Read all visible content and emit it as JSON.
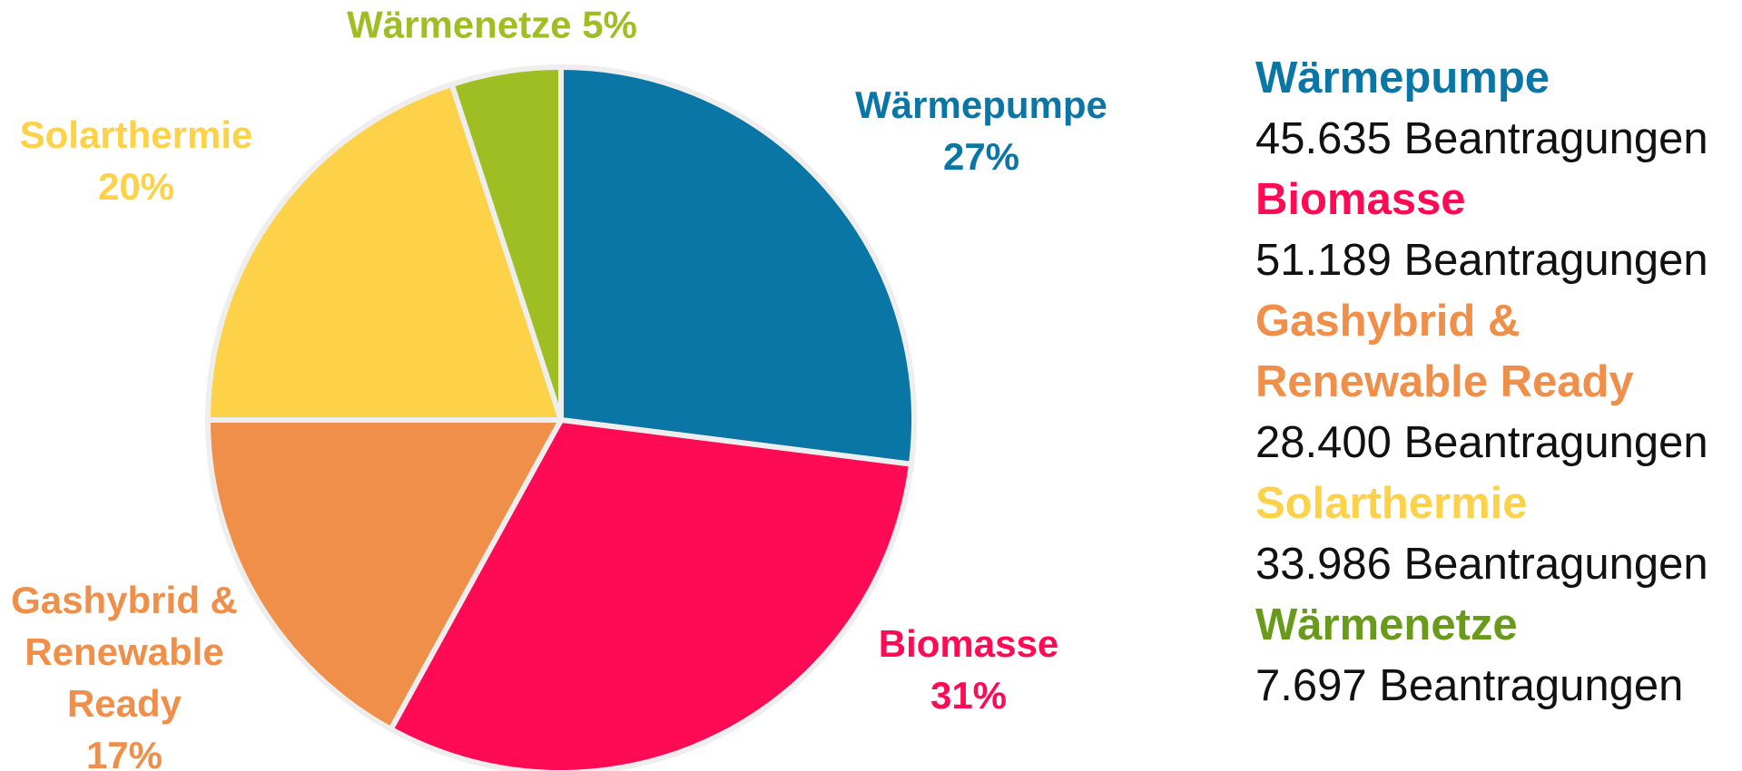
{
  "chart_data": {
    "type": "pie",
    "categories": [
      "Wärmepumpe",
      "Biomasse",
      "Gashybrid & Renewable Ready",
      "Solarthermie",
      "Wärmenetze"
    ],
    "values": [
      27,
      31,
      17,
      20,
      5
    ],
    "value_labels": [
      "27%",
      "31%",
      "17%",
      "20%",
      "5%"
    ],
    "colors": [
      "#0a76a6",
      "#ff0a55",
      "#ef8f4a",
      "#fdd249",
      "#9ebe24"
    ],
    "legend_counts": [
      "45.635 Beantragungen",
      "51.189 Beantragungen",
      "28.400 Beantragungen",
      "33.986 Beantragungen",
      "7.697 Beantragungen"
    ]
  }
}
